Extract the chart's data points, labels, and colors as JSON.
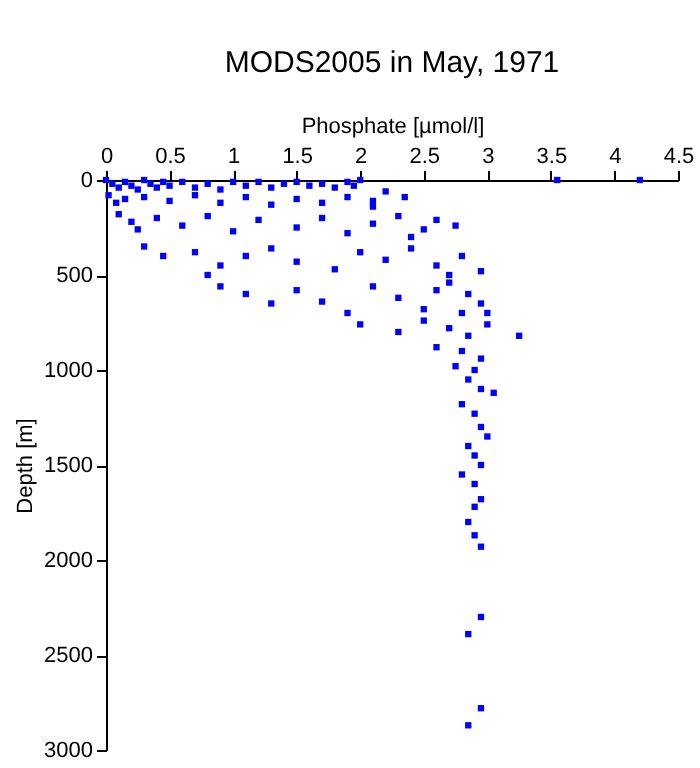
{
  "chart_data": {
    "type": "scatter",
    "title": "MODS2005 in May, 1971",
    "xlabel": "Phosphate [µmol/l]",
    "ylabel": "Depth [m]",
    "xlim": [
      0,
      4.5
    ],
    "xticks": [
      0,
      0.5,
      1,
      1.5,
      2,
      2.5,
      3,
      3.5,
      4,
      4.5
    ],
    "ylim": [
      3000,
      0
    ],
    "yticks": [
      0,
      500,
      1000,
      1500,
      2000,
      2500,
      3000
    ],
    "grid": false,
    "legend": false,
    "marker": "square",
    "series": [
      {
        "color": "#0000ff",
        "x": [
          0,
          0.05,
          0.1,
          0.15,
          0.2,
          0.25,
          0.3,
          0.35,
          0.4,
          0.45,
          0.5,
          0.6,
          0.7,
          0.8,
          0.9,
          1.0,
          1.1,
          1.2,
          1.3,
          1.4,
          1.5,
          1.6,
          1.7,
          1.8,
          1.9,
          1.95,
          2.0,
          3.55,
          4.2,
          0.02,
          0.08,
          0.15,
          0.3,
          0.5,
          0.7,
          0.9,
          1.1,
          1.3,
          1.5,
          1.7,
          1.9,
          2.1,
          2.2,
          2.35,
          2.1,
          0.1,
          0.2,
          0.25,
          0.4,
          0.6,
          0.8,
          1.0,
          1.2,
          1.5,
          1.7,
          1.9,
          2.1,
          2.3,
          2.5,
          2.6,
          2.75,
          2.4,
          0.3,
          0.45,
          0.7,
          0.9,
          1.1,
          1.3,
          1.5,
          1.8,
          2.0,
          2.2,
          2.4,
          2.6,
          2.8,
          2.95,
          2.7,
          0.8,
          0.9,
          1.1,
          1.3,
          1.5,
          1.7,
          1.9,
          2.1,
          2.3,
          2.5,
          2.7,
          2.85,
          2.95,
          3.0,
          2.8,
          2.6,
          2.0,
          2.3,
          2.5,
          2.7,
          2.85,
          3.0,
          3.25,
          2.6,
          2.8,
          2.95,
          2.75,
          2.9,
          2.85,
          2.95,
          3.05,
          2.8,
          2.9,
          2.95,
          3.0,
          2.85,
          2.9,
          2.95,
          2.8,
          2.9,
          2.95,
          2.9,
          2.85,
          2.9,
          2.95,
          2.95,
          2.85,
          2.95,
          2.85
        ],
        "values": [
          0,
          20,
          40,
          10,
          30,
          50,
          0,
          20,
          40,
          10,
          30,
          10,
          40,
          20,
          50,
          10,
          30,
          10,
          40,
          20,
          10,
          30,
          20,
          40,
          10,
          30,
          0,
          0,
          0,
          80,
          120,
          100,
          90,
          110,
          80,
          120,
          90,
          130,
          100,
          120,
          90,
          110,
          60,
          90,
          140,
          180,
          220,
          260,
          200,
          240,
          190,
          270,
          210,
          250,
          200,
          280,
          230,
          190,
          260,
          210,
          240,
          300,
          350,
          400,
          380,
          450,
          400,
          360,
          430,
          470,
          380,
          420,
          360,
          450,
          400,
          480,
          500,
          500,
          560,
          600,
          650,
          580,
          640,
          700,
          560,
          620,
          680,
          540,
          600,
          650,
          700,
          700,
          580,
          760,
          800,
          740,
          780,
          820,
          760,
          820,
          880,
          900,
          940,
          980,
          1000,
          1050,
          1100,
          1120,
          1180,
          1230,
          1300,
          1350,
          1400,
          1450,
          1500,
          1550,
          1600,
          1680,
          1720,
          1800,
          1870,
          1930,
          2300,
          2390,
          2780,
          2870
        ]
      }
    ]
  }
}
